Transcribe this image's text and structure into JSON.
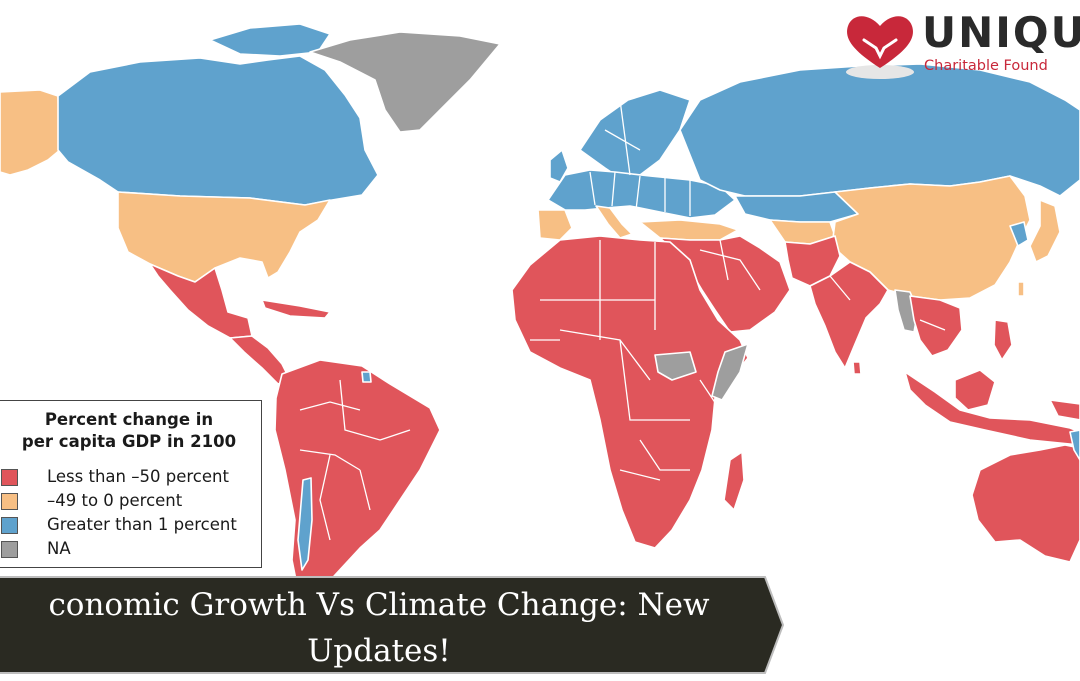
{
  "logo": {
    "brand": "UNIQU",
    "tagline": "Charitable Found",
    "icon": "heart-hands-icon"
  },
  "legend": {
    "title_line1": "Percent change in",
    "title_line2": "per capita GDP in 2100",
    "items": [
      {
        "label": "Less than –50 percent",
        "color": "#e0555b"
      },
      {
        "label": "–49 to 0 percent",
        "color": "#f7bf84"
      },
      {
        "label": "Greater than 1 percent",
        "color": "#5fa2cd"
      },
      {
        "label": "NA",
        "color": "#9e9e9e"
      }
    ]
  },
  "banner": {
    "title": "conomic Growth Vs Climate Change: New Updates!",
    "background": "#2a2a22"
  },
  "colors": {
    "red": "#e0555b",
    "orange": "#f7bf84",
    "blue": "#5fa2cd",
    "gray": "#9e9e9e"
  }
}
